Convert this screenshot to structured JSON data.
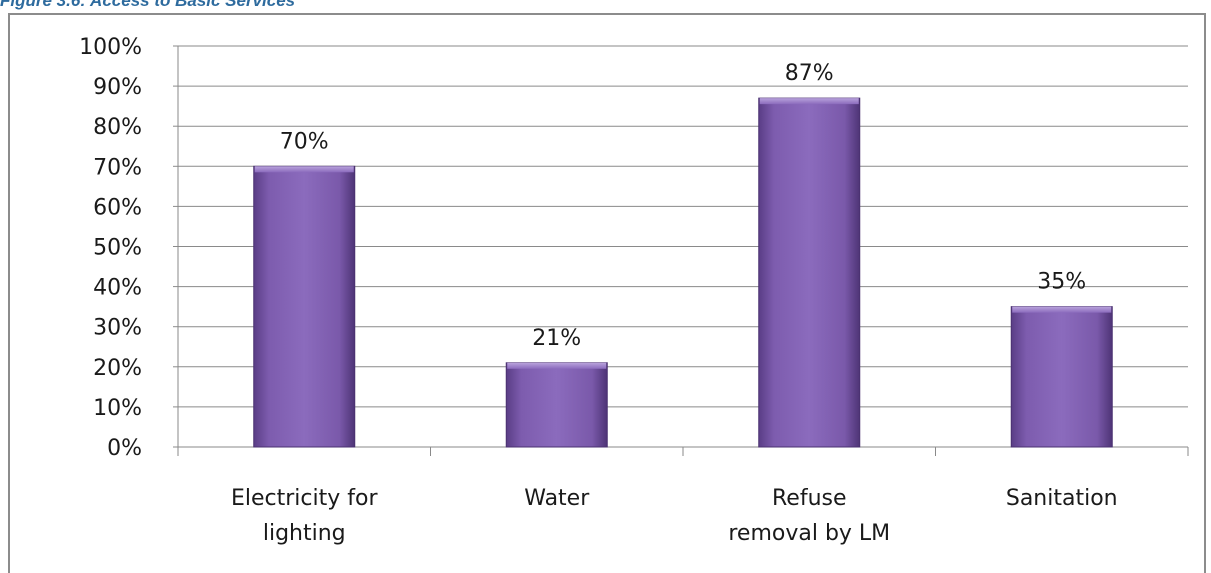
{
  "caption": "Figure 3.6: Access to Basic Services",
  "chart_data": {
    "type": "bar",
    "title": "",
    "xlabel": "",
    "ylabel": "",
    "categories": [
      [
        "Electricity for",
        "lighting"
      ],
      [
        "Water"
      ],
      [
        "Refuse",
        "removal by LM"
      ],
      [
        "Sanitation"
      ]
    ],
    "series": [
      {
        "values": [
          70,
          21,
          87,
          35
        ],
        "color": "#7a59aa"
      }
    ],
    "data_labels": [
      "70%",
      "21%",
      "87%",
      "35%"
    ],
    "ylim": [
      0,
      100
    ],
    "yticks": [
      "0%",
      "10%",
      "20%",
      "30%",
      "40%",
      "50%",
      "60%",
      "70%",
      "80%",
      "90%",
      "100%"
    ],
    "grid": true,
    "legend": "none"
  }
}
